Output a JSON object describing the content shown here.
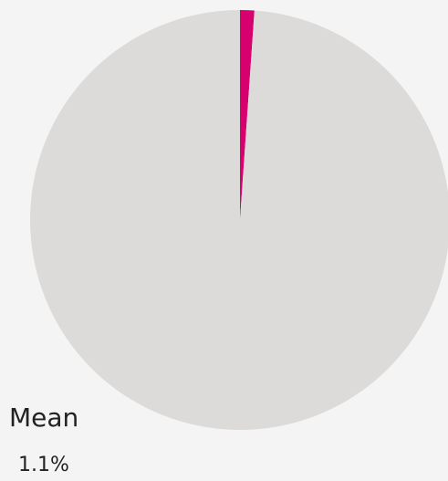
{
  "chart_data": {
    "type": "pie",
    "slices": [
      {
        "label": "",
        "value": 1.1,
        "color": "#d6006e"
      },
      {
        "label": "",
        "value": 98.9,
        "color": "#dcdbda"
      }
    ],
    "caption": {
      "label": "Mean",
      "value": "1.1%"
    }
  },
  "colors": {
    "background": "#f4f4f4",
    "accent": "#d6006e",
    "remainder": "#dcdbda"
  }
}
